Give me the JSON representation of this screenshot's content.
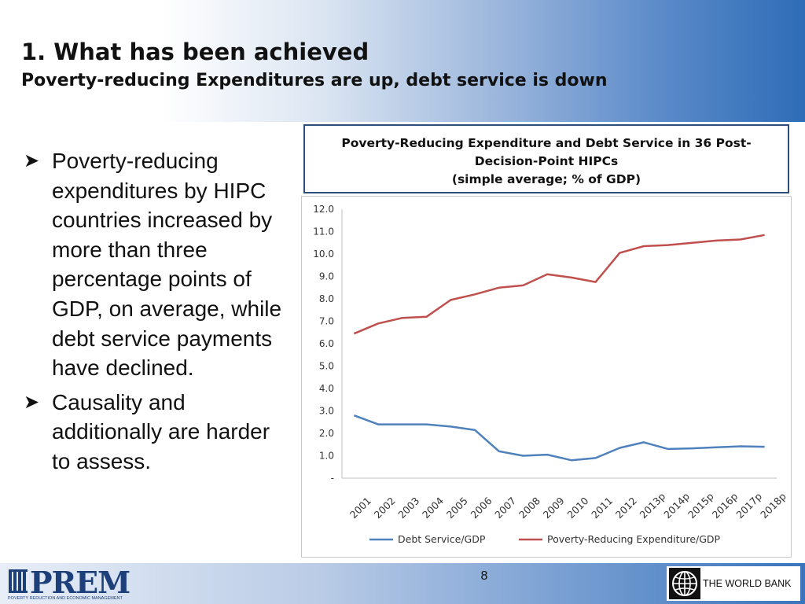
{
  "slide": {
    "title": "1. What has been achieved",
    "subtitle": "Poverty-reducing Expenditures are up, debt service is down",
    "page_number": "8"
  },
  "bullets": [
    "Poverty-reducing expenditures by HIPC countries increased by more than three percentage points of GDP, on average, while debt service payments have declined.",
    "Causality and additionally are harder to assess."
  ],
  "chart_box": {
    "title_line1": "Poverty-Reducing Expenditure and Debt Service in 36 Post-",
    "title_line2": "Decision-Point HIPCs",
    "title_line3": "(simple average; % of GDP)"
  },
  "footer": {
    "prem_logo": "PREM",
    "prem_caption": "POVERTY REDUCTION AND ECONOMIC MANAGEMENT",
    "wb_label": "THE WORLD BANK"
  },
  "colors": {
    "debt_series": "#4f81bd",
    "pre_series": "#c0504d"
  },
  "chart_data": {
    "type": "line",
    "categories": [
      "2001",
      "2002",
      "2003",
      "2004",
      "2005",
      "2006",
      "2007",
      "2008",
      "2009",
      "2010",
      "2011",
      "2012",
      "2013p",
      "2014p",
      "2015p",
      "2016p",
      "2017p",
      "2018p"
    ],
    "ylim": [
      0,
      12
    ],
    "yticks": [
      "-",
      "1.0",
      "2.0",
      "3.0",
      "4.0",
      "5.0",
      "6.0",
      "7.0",
      "8.0",
      "9.0",
      "10.0",
      "11.0",
      "12.0"
    ],
    "legend_position": "bottom",
    "grid": false,
    "series": [
      {
        "name": "Debt Service/GDP",
        "values": [
          2.8,
          2.4,
          2.4,
          2.4,
          2.3,
          2.15,
          1.2,
          1.0,
          1.05,
          0.8,
          0.9,
          1.35,
          1.6,
          1.3,
          1.33,
          1.38,
          1.42,
          1.4
        ]
      },
      {
        "name": "Poverty-Reducing Expenditure/GDP",
        "values": [
          6.45,
          6.9,
          7.15,
          7.2,
          7.95,
          8.2,
          8.5,
          8.6,
          9.1,
          8.95,
          8.75,
          10.05,
          10.35,
          10.4,
          10.5,
          10.6,
          10.65,
          10.85
        ]
      }
    ]
  }
}
